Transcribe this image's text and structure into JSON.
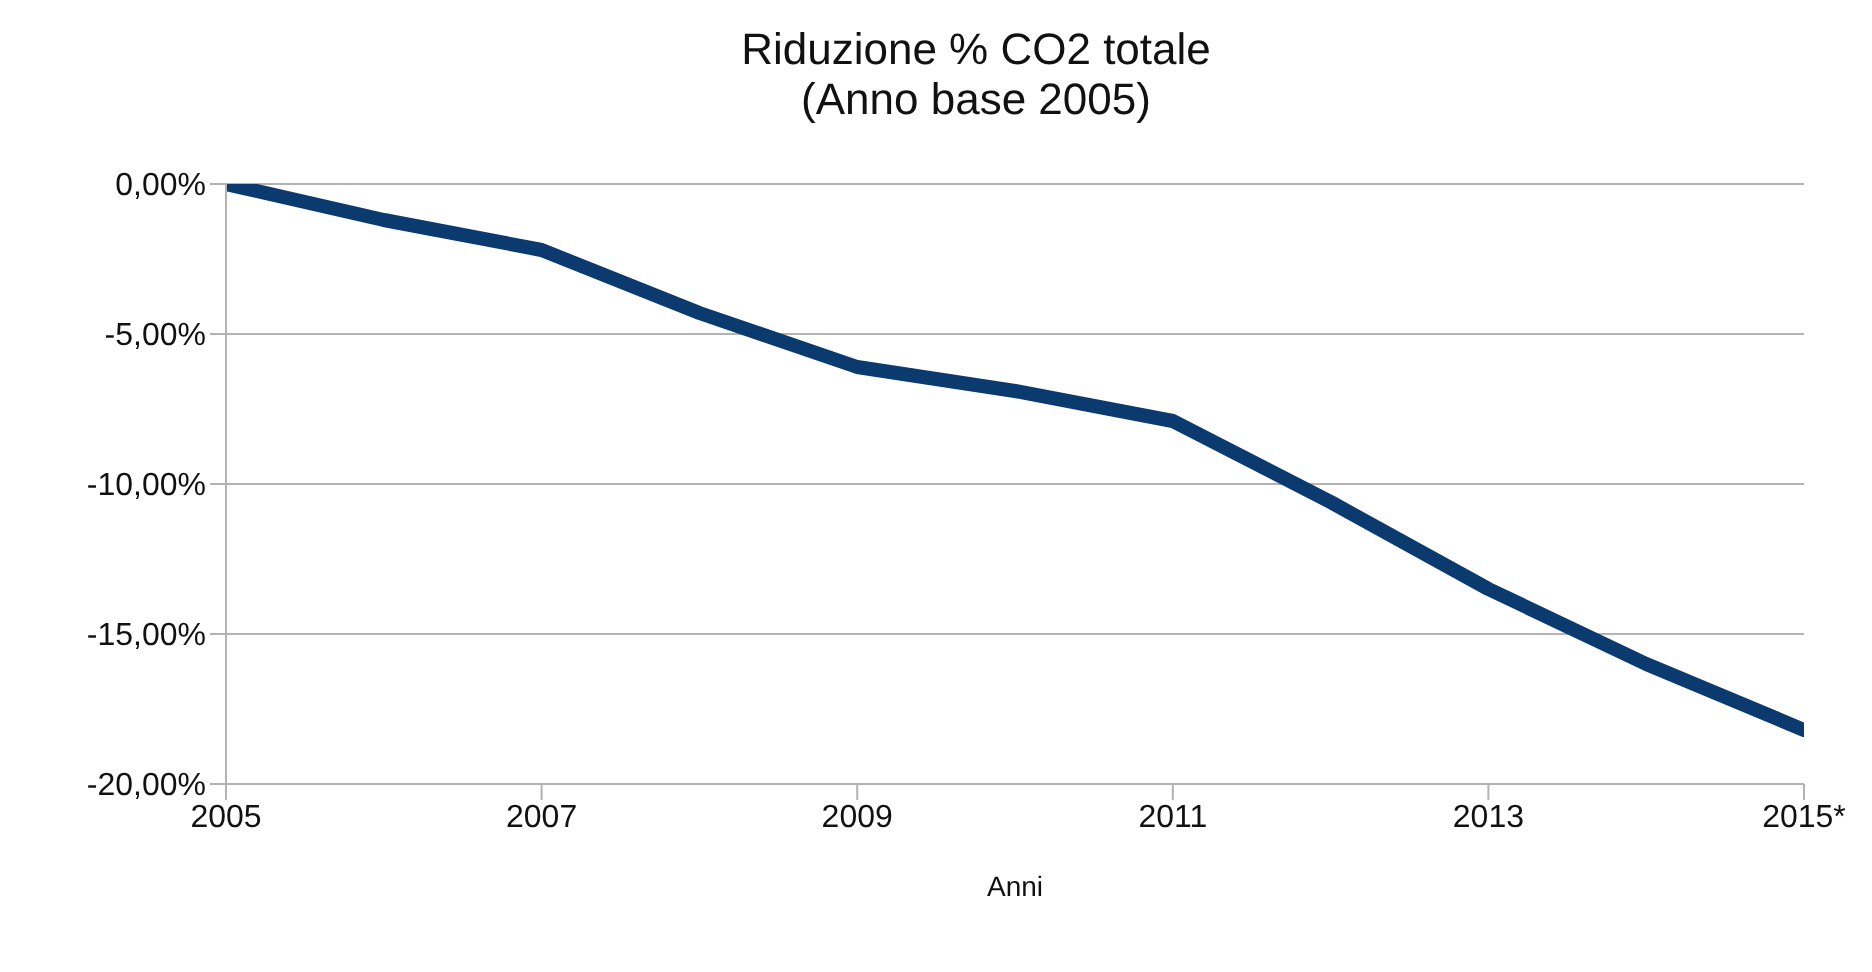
{
  "chart_data": {
    "type": "line",
    "title": "Riduzione % CO2 totale",
    "subtitle": "(Anno base 2005)",
    "xlabel": "Anni",
    "x": [
      2005,
      2006,
      2007,
      2008,
      2009,
      2010,
      2011,
      2012,
      2013,
      2014,
      2015
    ],
    "series": [
      {
        "color": "#0b3a6f",
        "values": [
          0,
          -1.2,
          -2.2,
          -4.3,
          -6.1,
          -6.9,
          -7.9,
          -10.6,
          -13.5,
          -16.0,
          -18.2
        ]
      }
    ],
    "xlim": [
      2005,
      2015
    ],
    "xticks": [
      2005,
      2007,
      2009,
      2011,
      2013,
      {
        "value": 2015,
        "label": "2015*"
      }
    ],
    "ylim": [
      -20,
      0
    ],
    "yticks": [
      {
        "value": -20,
        "label": "-20,00%"
      },
      {
        "value": -15,
        "label": "-15,00%"
      },
      {
        "value": -10,
        "label": "-10,00%"
      },
      {
        "value": -5,
        "label": "-5,00%"
      },
      {
        "value": 0,
        "label": "0,00%"
      }
    ],
    "grid": "y",
    "legend": false,
    "marker": "none",
    "line_style": "solid"
  }
}
